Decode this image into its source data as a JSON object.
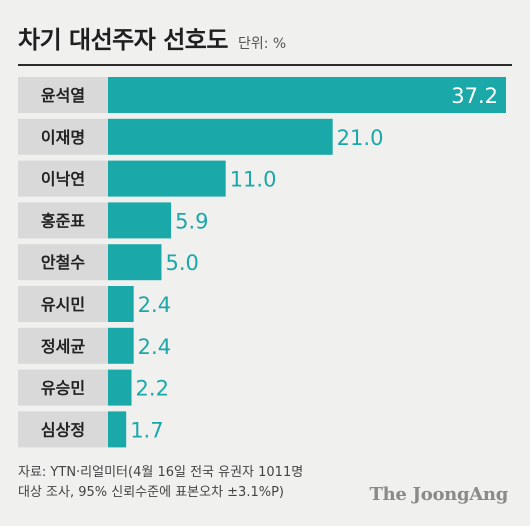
{
  "header": {
    "title": "차기 대선주자 선호도",
    "unit": "단위: %"
  },
  "chart_data": {
    "type": "bar",
    "orientation": "horizontal",
    "title": "차기 대선주자 선호도",
    "unit": "%",
    "categories": [
      "윤석열",
      "이재명",
      "이낙연",
      "홍준표",
      "안철수",
      "유시민",
      "정세균",
      "유승민",
      "심상정"
    ],
    "values": [
      37.2,
      21.0,
      11.0,
      5.9,
      5.0,
      2.4,
      2.4,
      2.2,
      1.7
    ],
    "value_labels": [
      "37.2",
      "21.0",
      "11.0",
      "5.9",
      "5.0",
      "2.4",
      "2.4",
      "2.2",
      "1.7"
    ],
    "bar_color": "#1ba8a8",
    "label_box_color": "#d9d9d9",
    "value_label_color": "#1ba8a8",
    "top_value_label_color": "#ffffff"
  },
  "footer": {
    "source_line1": "자료: YTN·리얼미터(4월 16일 전국 유권자 1011명",
    "source_line2": "대상 조사, 95% 신뢰수준에 표본오차 ±3.1%P)",
    "logo": "The JoongAng"
  }
}
